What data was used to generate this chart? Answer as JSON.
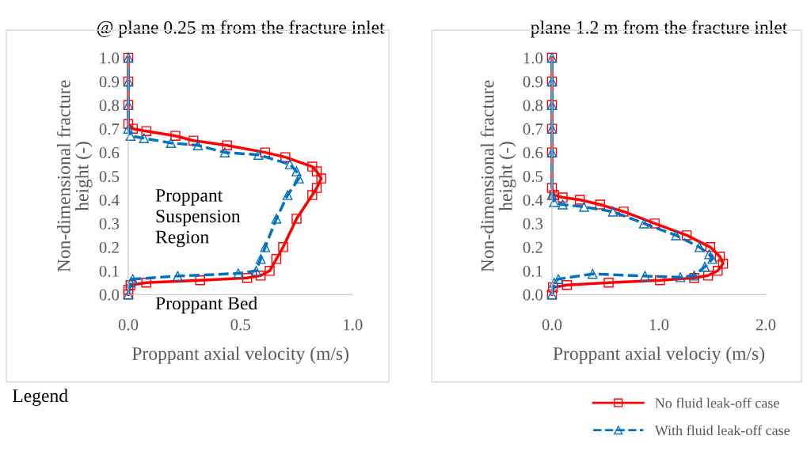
{
  "chart_data": [
    {
      "type": "line",
      "title": "@ plane 0.25 m from the fracture inlet",
      "xlabel": "Proppant axial velocity (m/s)",
      "ylabel": "Non-dimensional fracture\nheight (-)",
      "annotations": [
        "Proppant\nSuspension\nRegion",
        "Proppant Bed",
        "Legend"
      ],
      "xlim": [
        0,
        1.0
      ],
      "ylim": [
        0,
        1.0
      ],
      "xticks": [
        {
          "value": 0,
          "label": "0.0"
        },
        {
          "value": 0.5,
          "label": "0.5"
        },
        {
          "value": 1.0,
          "label": "1.0"
        }
      ],
      "yticks": [
        {
          "value": 0,
          "label": "0.0"
        },
        {
          "value": 0.1,
          "label": "0.1"
        },
        {
          "value": 0.2,
          "label": "0.2"
        },
        {
          "value": 0.3,
          "label": "0.3"
        },
        {
          "value": 0.4,
          "label": "0.4"
        },
        {
          "value": 0.5,
          "label": "0.5"
        },
        {
          "value": 0.6,
          "label": "0.6"
        },
        {
          "value": 0.7,
          "label": "0.7"
        },
        {
          "value": 0.8,
          "label": "0.8"
        },
        {
          "value": 0.9,
          "label": "0.9"
        },
        {
          "value": 1.0,
          "label": "1.0"
        }
      ],
      "grid": false,
      "legend": false,
      "series": [
        {
          "color": "#ff0000",
          "marker": "square",
          "line_style": "solid",
          "x": [
            0,
            0,
            0.01,
            0.08,
            0.32,
            0.53,
            0.59,
            0.63,
            0.66,
            0.69,
            0.75,
            0.82,
            0.84,
            0.86,
            0.84,
            0.82,
            0.7,
            0.61,
            0.44,
            0.29,
            0.21,
            0.08,
            0.02,
            0,
            0,
            0,
            0
          ],
          "values": [
            0,
            0.02,
            0.04,
            0.05,
            0.06,
            0.07,
            0.08,
            0.1,
            0.15,
            0.2,
            0.32,
            0.42,
            0.45,
            0.49,
            0.52,
            0.54,
            0.58,
            0.6,
            0.63,
            0.65,
            0.67,
            0.69,
            0.7,
            0.72,
            0.8,
            0.9,
            1.0
          ]
        },
        {
          "color": "#0070c0",
          "marker": "triangle",
          "line_style": "dashed",
          "x": [
            0,
            0.01,
            0.02,
            0.22,
            0.49,
            0.57,
            0.59,
            0.61,
            0.66,
            0.71,
            0.76,
            0.75,
            0.72,
            0.58,
            0.43,
            0.31,
            0.19,
            0.07,
            0.01,
            0,
            0,
            0,
            0
          ],
          "values": [
            0,
            0.05,
            0.065,
            0.078,
            0.089,
            0.1,
            0.15,
            0.2,
            0.32,
            0.42,
            0.49,
            0.52,
            0.55,
            0.59,
            0.6,
            0.63,
            0.64,
            0.66,
            0.67,
            0.7,
            0.8,
            0.9,
            1.0
          ]
        }
      ]
    },
    {
      "type": "line",
      "title": "plane 1.2 m from the fracture inlet",
      "xlabel": "Proppant axial velociy (m/s)",
      "ylabel": "Non-dimensional fracture\nheight (-)",
      "xlim": [
        0,
        2.0
      ],
      "ylim": [
        0,
        1.0
      ],
      "xticks": [
        {
          "value": 0,
          "label": "0.0"
        },
        {
          "value": 1.0,
          "label": "1.0"
        },
        {
          "value": 2.0,
          "label": "2.0"
        }
      ],
      "yticks": [
        {
          "value": 0,
          "label": "0.0"
        },
        {
          "value": 0.1,
          "label": "0.1"
        },
        {
          "value": 0.2,
          "label": "0.2"
        },
        {
          "value": 0.3,
          "label": "0.3"
        },
        {
          "value": 0.4,
          "label": "0.4"
        },
        {
          "value": 0.5,
          "label": "0.5"
        },
        {
          "value": 0.6,
          "label": "0.6"
        },
        {
          "value": 0.7,
          "label": "0.7"
        },
        {
          "value": 0.8,
          "label": "0.8"
        },
        {
          "value": 0.9,
          "label": "0.9"
        },
        {
          "value": 1.0,
          "label": "1.0"
        }
      ],
      "grid": false,
      "legend": "bottom right",
      "series": [
        {
          "name": "No fluid leak-off case",
          "color": "#ff0000",
          "marker": "square",
          "line_style": "solid",
          "x": [
            0,
            0.01,
            0.14,
            0.53,
            1.01,
            1.33,
            1.46,
            1.55,
            1.6,
            1.57,
            1.48,
            1.26,
            0.96,
            0.67,
            0.45,
            0.26,
            0.1,
            0.02,
            0,
            0,
            0,
            0,
            0,
            0
          ],
          "values": [
            0,
            0.03,
            0.04,
            0.05,
            0.06,
            0.07,
            0.08,
            0.1,
            0.13,
            0.16,
            0.2,
            0.25,
            0.3,
            0.35,
            0.38,
            0.4,
            0.41,
            0.42,
            0.45,
            0.6,
            0.7,
            0.8,
            0.9,
            1.0
          ]
        },
        {
          "name": "With fluid leak-off case",
          "color": "#0070c0",
          "marker": "triangle",
          "line_style": "dashed",
          "x": [
            0,
            0.02,
            0.06,
            0.38,
            0.87,
            1.2,
            1.33,
            1.43,
            1.5,
            1.47,
            1.38,
            1.16,
            0.86,
            0.57,
            0.3,
            0.1,
            0.02,
            0,
            0,
            0,
            0,
            0,
            0
          ],
          "values": [
            0,
            0.05,
            0.065,
            0.087,
            0.078,
            0.073,
            0.08,
            0.117,
            0.15,
            0.17,
            0.2,
            0.25,
            0.3,
            0.35,
            0.37,
            0.38,
            0.39,
            0.42,
            0.6,
            0.7,
            0.8,
            0.9,
            1.0
          ]
        }
      ]
    }
  ]
}
